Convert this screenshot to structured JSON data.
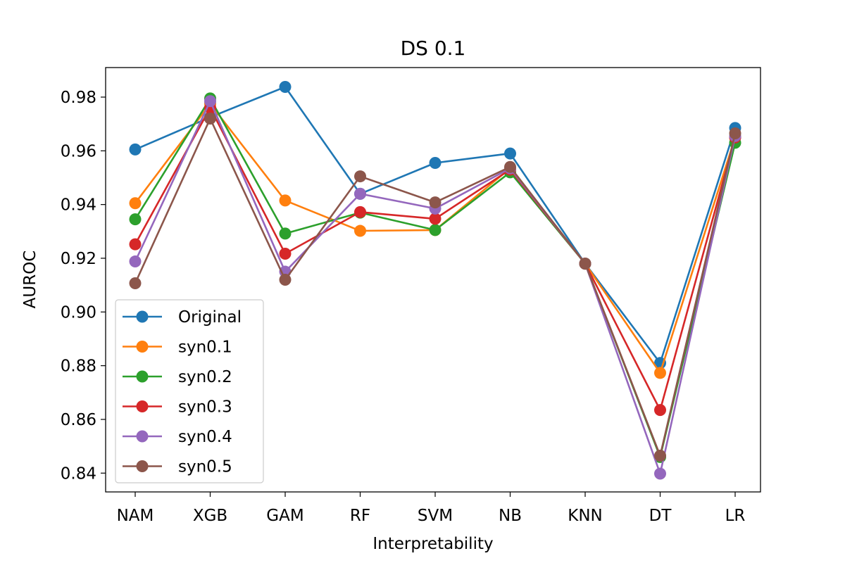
{
  "chart_data": {
    "type": "line",
    "title": "DS 0.1",
    "xlabel": "Interpretability",
    "ylabel": "AUROC",
    "categories": [
      "NAM",
      "XGB",
      "GAM",
      "RF",
      "SVM",
      "NB",
      "KNN",
      "DT",
      "LR"
    ],
    "ylim": [
      0.833,
      0.991
    ],
    "yticks": [
      0.84,
      0.86,
      0.88,
      0.9,
      0.92,
      0.94,
      0.96,
      0.98
    ],
    "ytick_labels": [
      "0.84",
      "0.86",
      "0.88",
      "0.90",
      "0.92",
      "0.94",
      "0.96",
      "0.98"
    ],
    "grid": false,
    "legend_position": "lower-left",
    "series": [
      {
        "name": "Original",
        "color": "#1f77b4",
        "values": [
          0.9605,
          0.9725,
          0.9838,
          0.944,
          0.9555,
          0.959,
          0.918,
          0.881,
          0.9685
        ]
      },
      {
        "name": "syn0.1",
        "color": "#ff7f0e",
        "values": [
          0.9405,
          0.9775,
          0.9415,
          0.9302,
          0.9305,
          0.9535,
          0.918,
          0.8773,
          0.965
        ]
      },
      {
        "name": "syn0.2",
        "color": "#2ca02c",
        "values": [
          0.9345,
          0.9795,
          0.9292,
          0.937,
          0.9305,
          0.952,
          0.918,
          0.846,
          0.963
        ]
      },
      {
        "name": "syn0.3",
        "color": "#d62728",
        "values": [
          0.9252,
          0.976,
          0.9217,
          0.9372,
          0.9347,
          0.953,
          0.918,
          0.8635,
          0.965
        ]
      },
      {
        "name": "syn0.4",
        "color": "#9467bd",
        "values": [
          0.9188,
          0.9785,
          0.915,
          0.944,
          0.9385,
          0.9535,
          0.918,
          0.8398,
          0.9655
        ]
      },
      {
        "name": "syn0.5",
        "color": "#8c564b",
        "values": [
          0.9107,
          0.972,
          0.912,
          0.9505,
          0.9408,
          0.954,
          0.918,
          0.8465,
          0.9665
        ]
      }
    ]
  }
}
